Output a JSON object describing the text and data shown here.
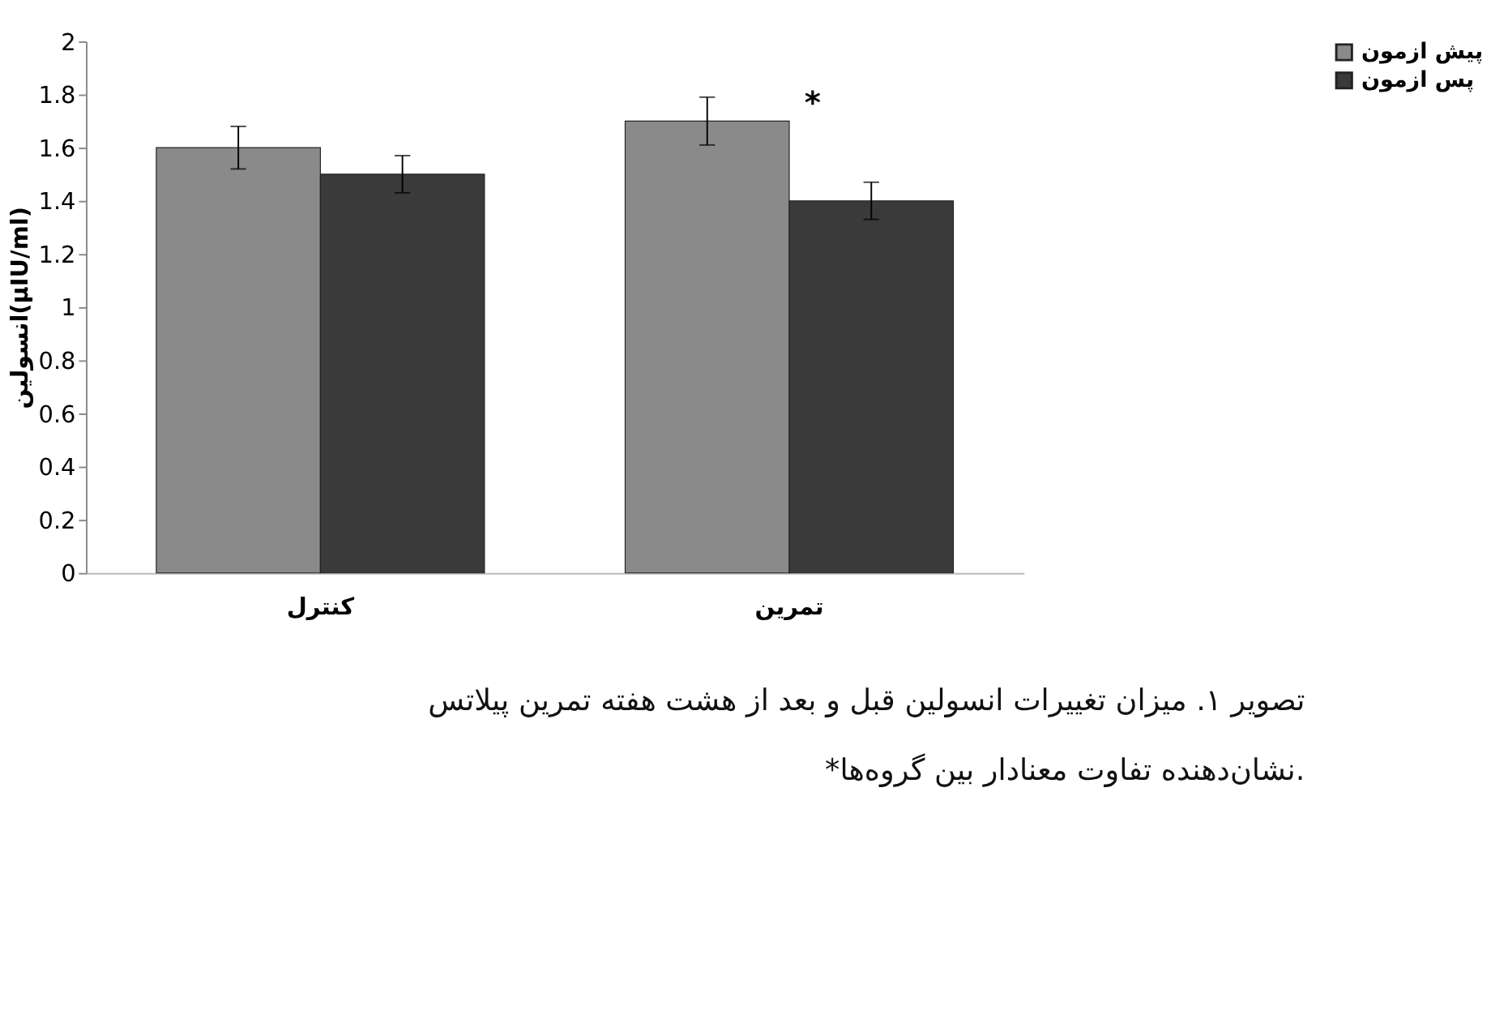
{
  "chart_data": {
    "type": "bar",
    "categories": [
      "کنترل",
      "تمرین"
    ],
    "ylabel": "انسولین(µIU/ml)",
    "series": [
      {
        "name": "پیش ازمون",
        "color": "#8a8a8a",
        "values": [
          1.6,
          1.7
        ],
        "errors": [
          0.08,
          0.09
        ]
      },
      {
        "name": "پس ازمون",
        "color": "#3a3a3a",
        "values": [
          1.5,
          1.4
        ],
        "errors": [
          0.07,
          0.07
        ]
      }
    ],
    "ylim": [
      0,
      2
    ],
    "yticks": [
      0,
      0.2,
      0.4,
      0.6,
      0.8,
      1,
      1.2,
      1.4,
      1.6,
      1.8,
      2
    ],
    "grid": false,
    "legend": "right",
    "annotations": [
      {
        "text": "*",
        "x": "تمرین",
        "y": 1.47
      },
      "تصویر ۱. میزان تغییرات انسولین قبل و بعد از هشت هفته تمرین پیلاتس",
      "*نشان‌دهنده تفاوت معنادار بین گروه‌ها."
    ]
  }
}
